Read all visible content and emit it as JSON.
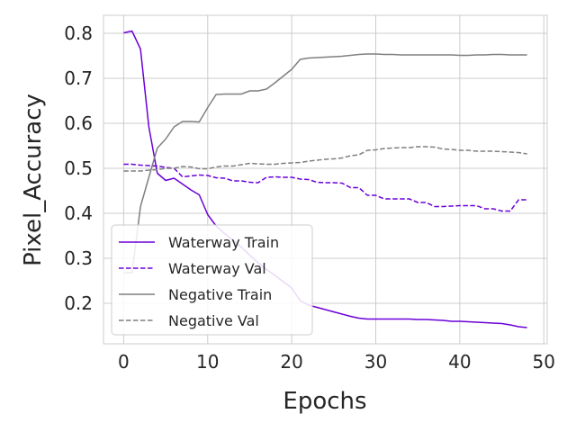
{
  "chart_data": {
    "type": "line",
    "title": "",
    "xlabel": "Epochs",
    "ylabel": "Pixel_Accuracy",
    "xlim": [
      -2.4,
      50.4
    ],
    "ylim": [
      0.11,
      0.84
    ],
    "xticks": [
      0,
      10,
      20,
      30,
      40,
      50
    ],
    "yticks": [
      0.2,
      0.3,
      0.4,
      0.5,
      0.6,
      0.7,
      0.8
    ],
    "grid": true,
    "legend_position": "lower-left",
    "x": [
      0,
      1,
      2,
      3,
      4,
      5,
      6,
      7,
      8,
      9,
      10,
      11,
      12,
      13,
      14,
      15,
      16,
      17,
      18,
      19,
      20,
      21,
      22,
      23,
      24,
      25,
      26,
      27,
      28,
      29,
      30,
      31,
      32,
      33,
      34,
      35,
      36,
      37,
      38,
      39,
      40,
      41,
      42,
      43,
      44,
      45,
      46,
      47,
      48
    ],
    "series": [
      {
        "name": "Waterway Train",
        "color": "#6b00d7",
        "dash": "solid",
        "values": [
          0.801,
          0.805,
          0.765,
          0.592,
          0.489,
          0.473,
          0.478,
          0.465,
          0.452,
          0.441,
          0.397,
          0.372,
          0.355,
          0.34,
          0.325,
          0.307,
          0.29,
          0.275,
          0.262,
          0.248,
          0.234,
          0.206,
          0.196,
          0.191,
          0.186,
          0.181,
          0.176,
          0.171,
          0.167,
          0.165,
          0.165,
          0.165,
          0.165,
          0.165,
          0.165,
          0.164,
          0.164,
          0.163,
          0.162,
          0.16,
          0.16,
          0.159,
          0.158,
          0.157,
          0.156,
          0.155,
          0.152,
          0.148,
          0.146
        ]
      },
      {
        "name": "Waterway Val",
        "color": "#6b00d7",
        "dash": "dashed",
        "values": [
          0.509,
          0.509,
          0.507,
          0.506,
          0.505,
          0.502,
          0.5,
          0.481,
          0.483,
          0.485,
          0.484,
          0.479,
          0.478,
          0.472,
          0.472,
          0.469,
          0.468,
          0.48,
          0.481,
          0.48,
          0.48,
          0.476,
          0.475,
          0.469,
          0.468,
          0.468,
          0.467,
          0.457,
          0.457,
          0.44,
          0.44,
          0.432,
          0.432,
          0.432,
          0.432,
          0.424,
          0.424,
          0.415,
          0.415,
          0.416,
          0.417,
          0.417,
          0.417,
          0.41,
          0.41,
          0.405,
          0.405,
          0.43,
          0.43
        ]
      },
      {
        "name": "Negative Train",
        "color": "#7f7f7f",
        "dash": "solid",
        "values": [
          0.268,
          0.268,
          0.415,
          0.48,
          0.545,
          0.565,
          0.592,
          0.604,
          0.604,
          0.603,
          0.635,
          0.664,
          0.665,
          0.665,
          0.665,
          0.672,
          0.672,
          0.676,
          0.69,
          0.705,
          0.72,
          0.742,
          0.745,
          0.746,
          0.747,
          0.748,
          0.749,
          0.751,
          0.753,
          0.754,
          0.754,
          0.753,
          0.753,
          0.752,
          0.752,
          0.752,
          0.752,
          0.752,
          0.752,
          0.752,
          0.751,
          0.751,
          0.752,
          0.752,
          0.753,
          0.753,
          0.752,
          0.752,
          0.752
        ]
      },
      {
        "name": "Negative Val",
        "color": "#7f7f7f",
        "dash": "dashed",
        "values": [
          0.494,
          0.494,
          0.494,
          0.496,
          0.497,
          0.5,
          0.5,
          0.504,
          0.503,
          0.499,
          0.499,
          0.503,
          0.505,
          0.505,
          0.508,
          0.511,
          0.51,
          0.509,
          0.509,
          0.511,
          0.512,
          0.513,
          0.516,
          0.518,
          0.52,
          0.521,
          0.523,
          0.528,
          0.53,
          0.54,
          0.541,
          0.544,
          0.545,
          0.546,
          0.546,
          0.548,
          0.548,
          0.547,
          0.543,
          0.542,
          0.54,
          0.54,
          0.538,
          0.538,
          0.538,
          0.537,
          0.536,
          0.535,
          0.532
        ]
      }
    ]
  }
}
